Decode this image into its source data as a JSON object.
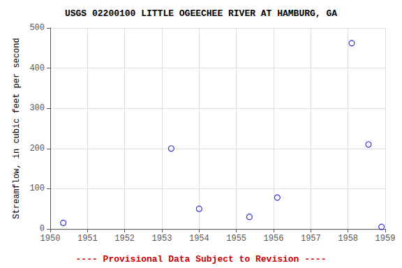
{
  "chart_data": {
    "type": "scatter",
    "title": "USGS 02200100 LITTLE OGEECHEE RIVER AT HAMBURG, GA",
    "ylabel": "Streamflow, in cubic feet per second",
    "x": [
      1950.35,
      1953.25,
      1954.0,
      1955.35,
      1956.1,
      1958.1,
      1958.55,
      1958.9
    ],
    "values": [
      15,
      200,
      50,
      30,
      78,
      462,
      210,
      5
    ],
    "color": "#0000cc",
    "marker": "open_circle",
    "xlim": [
      1950,
      1959
    ],
    "xticks": [
      1950,
      1951,
      1952,
      1953,
      1954,
      1955,
      1956,
      1957,
      1958,
      1959
    ],
    "ylim": [
      0,
      500
    ],
    "yticks": [
      0,
      100,
      200,
      300,
      400,
      500
    ],
    "grid": true,
    "annotation": {
      "text": "---- Provisional Data Subject to Revision ----",
      "color": "#cc0000"
    }
  }
}
